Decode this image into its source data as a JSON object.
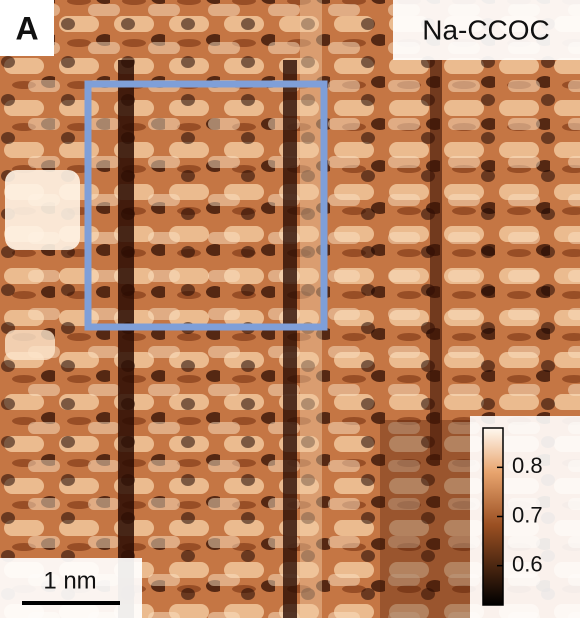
{
  "panel_label": "A",
  "sample_label": "Na-CCOC",
  "scale_bar": "1 nm",
  "colorbar": {
    "clim": [
      0.52,
      0.88
    ],
    "ticks": [
      0.6,
      0.7,
      0.8
    ]
  }
}
